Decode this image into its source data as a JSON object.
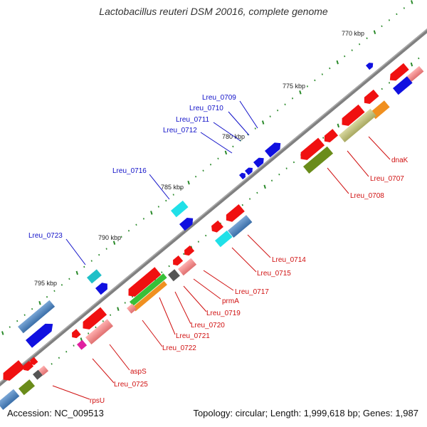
{
  "title": "Lactobacillus reuteri DSM 20016, complete genome",
  "footer": {
    "accession": "Accession: NC_009513",
    "stats": "Topology: circular; Length: 1,999,618 bp; Genes: 1,987"
  },
  "colors": {
    "backbone": "#7f7f7f",
    "forward_label": "#1010c8",
    "reverse_label": "#d01010",
    "tick": "#2a8a2a"
  },
  "scale_labels": [
    "770 kbp",
    "775 kbp",
    "780 kbp",
    "785 kbp",
    "790 kbp",
    "795 kbp"
  ],
  "forward_labels": [
    "Lreu_0709",
    "Lreu_0710",
    "Lreu_0711",
    "Lreu_0712",
    "Lreu_0716",
    "Lreu_0723"
  ],
  "reverse_labels": [
    "dnaK",
    "Lreu_0707",
    "Lreu_0708",
    "Lreu_0714",
    "Lreu_0715",
    "Lreu_0717",
    "prmA",
    "Lreu_0719",
    "Lreu_0720",
    "Lreu_0721",
    "Lreu_0722",
    "aspS",
    "Lreu_0725",
    "rpsU"
  ]
}
